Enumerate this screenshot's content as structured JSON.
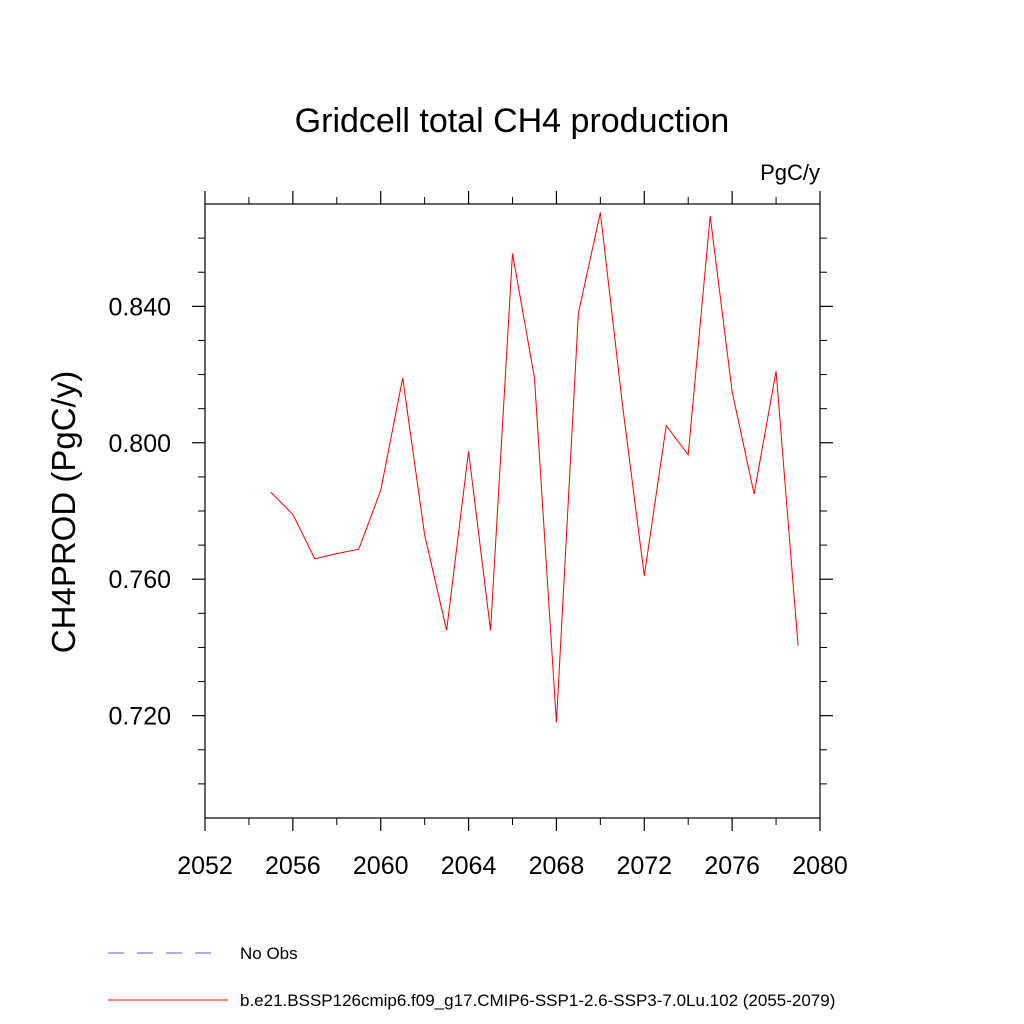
{
  "chart_data": {
    "type": "line",
    "title": "Gridcell total CH4 production",
    "units_label": "PgC/y",
    "ylabel": "CH4PROD  (PgC/y)",
    "xlabel": "",
    "xlim": [
      2052,
      2080
    ],
    "ylim": [
      0.69,
      0.87
    ],
    "x_ticks": [
      2052,
      2056,
      2060,
      2064,
      2068,
      2072,
      2076,
      2080
    ],
    "x_tick_labels": [
      "2052",
      "2056",
      "2060",
      "2064",
      "2068",
      "2072",
      "2076",
      "2080"
    ],
    "x_minor_step": 2,
    "y_ticks": [
      0.72,
      0.76,
      0.8,
      0.84
    ],
    "y_tick_labels": [
      "0.720",
      "0.760",
      "0.800",
      "0.840"
    ],
    "y_minor_step": 0.01,
    "grid": false,
    "legend_position": "bottom",
    "series": [
      {
        "name": "No Obs",
        "color": "#6a5acd",
        "dash": "dashed",
        "x": [],
        "y": []
      },
      {
        "name": "b.e21.BSSP126cmip6.f09_g17.CMIP6-SSP1-2.6-SSP3-7.0Lu.102 (2055-2079)",
        "color": "#ff0000",
        "dash": "solid",
        "x": [
          2055,
          2056,
          2057,
          2058,
          2059,
          2060,
          2061,
          2062,
          2063,
          2064,
          2065,
          2066,
          2067,
          2068,
          2069,
          2070,
          2071,
          2072,
          2073,
          2074,
          2075,
          2076,
          2077,
          2078,
          2079
        ],
        "y": [
          0.7855,
          0.779,
          0.766,
          0.7675,
          0.7688,
          0.786,
          0.819,
          0.773,
          0.745,
          0.7975,
          0.745,
          0.8555,
          0.819,
          0.718,
          0.838,
          0.8675,
          0.8115,
          0.761,
          0.805,
          0.7965,
          0.8665,
          0.815,
          0.785,
          0.821,
          0.7405
        ]
      }
    ]
  }
}
